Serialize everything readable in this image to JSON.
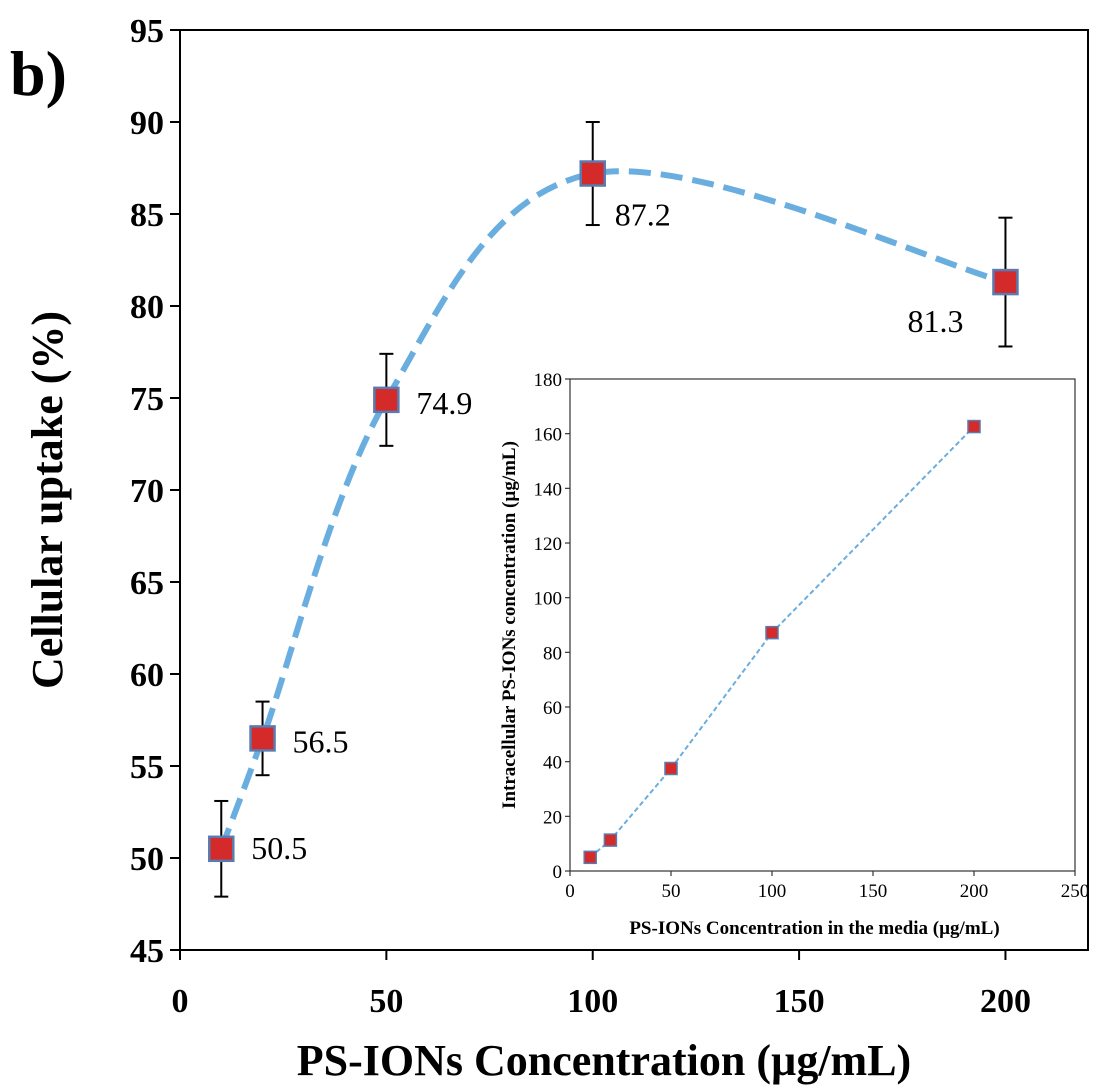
{
  "panel_label": "b)",
  "chart_data": [
    {
      "type": "scatter",
      "role": "main",
      "xlabel": "PS-IONs Concentration (µg/mL)",
      "ylabel": "Cellular uptake (%)",
      "xlim": [
        0,
        220
      ],
      "ylim": [
        45,
        95
      ],
      "xticks": [
        "0",
        "50",
        "100",
        "150",
        "200"
      ],
      "yticks": [
        "45",
        "50",
        "55",
        "60",
        "65",
        "70",
        "75",
        "80",
        "85",
        "90",
        "95"
      ],
      "grid": false,
      "trendline": "smooth-dashed",
      "colors": {
        "marker_fill": "#d42a2a",
        "marker_edge": "#5a7ab0",
        "trend": "#6aaee0",
        "error_bar": "#000000"
      },
      "points": [
        {
          "x": 10,
          "y": 50.5,
          "err": 2.6,
          "label": "50.5"
        },
        {
          "x": 20,
          "y": 56.5,
          "err": 2.0,
          "label": "56.5"
        },
        {
          "x": 50,
          "y": 74.9,
          "err": 2.5,
          "label": "74.9"
        },
        {
          "x": 100,
          "y": 87.2,
          "err": 2.8,
          "label": "87.2"
        },
        {
          "x": 200,
          "y": 81.3,
          "err": 3.5,
          "label": "81.3"
        }
      ]
    },
    {
      "type": "scatter",
      "role": "inset",
      "xlabel": "PS-IONs Concentration in the media (µg/mL)",
      "ylabel": "Intracellular PS-IONs concentration (µg/mL)",
      "xlim": [
        0,
        250
      ],
      "ylim": [
        0,
        180
      ],
      "xticks": [
        "0",
        "50",
        "100",
        "150",
        "200",
        "250"
      ],
      "yticks": [
        "0",
        "20",
        "40",
        "60",
        "80",
        "100",
        "120",
        "140",
        "160",
        "180"
      ],
      "grid": false,
      "trendline": "linear-dotted",
      "colors": {
        "marker_fill": "#d42a2a",
        "marker_edge": "#5a7ab0",
        "trend": "#6aaee0"
      },
      "points": [
        {
          "x": 10,
          "y": 5
        },
        {
          "x": 20,
          "y": 11.3
        },
        {
          "x": 50,
          "y": 37.5
        },
        {
          "x": 100,
          "y": 87.2
        },
        {
          "x": 200,
          "y": 162.6
        }
      ]
    }
  ]
}
